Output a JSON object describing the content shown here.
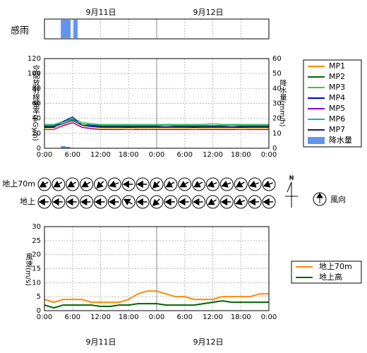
{
  "dates": [
    "9月11日",
    "9月12日"
  ],
  "chart_data": [
    {
      "type": "timeline",
      "label": "感雨",
      "color": "#6495ed",
      "xlim": [
        0,
        48
      ],
      "xticks": [
        0,
        6,
        12,
        18,
        24,
        30,
        36,
        42,
        48
      ],
      "intervals": [
        [
          3.5,
          5.6
        ],
        [
          6.2,
          7.1
        ]
      ]
    },
    {
      "type": "line",
      "ylabel": "空間放射線量率(nGy/h)",
      "y2label": "降水量(mm/h)",
      "xlim": [
        0,
        48
      ],
      "ylim": [
        0,
        120
      ],
      "yticks": [
        0,
        20,
        40,
        60,
        80,
        100,
        120
      ],
      "y2lim": [
        0,
        60
      ],
      "y2ticks": [
        0,
        10,
        20,
        30,
        40,
        50,
        60
      ],
      "xticks": [
        {
          "value": 0,
          "label": "0:00"
        },
        {
          "value": 6,
          "label": "6:00"
        },
        {
          "value": 12,
          "label": "12:00"
        },
        {
          "value": 18,
          "label": "18:00"
        },
        {
          "value": 24,
          "label": "0:00"
        },
        {
          "value": 30,
          "label": "6:00"
        },
        {
          "value": 36,
          "label": "12:00"
        },
        {
          "value": 42,
          "label": "18:00"
        },
        {
          "value": 48,
          "label": "0:00"
        }
      ],
      "x": [
        0,
        2,
        4,
        6,
        8,
        10,
        12,
        14,
        16,
        18,
        20,
        22,
        24,
        26,
        28,
        30,
        32,
        34,
        36,
        38,
        40,
        42,
        44,
        46,
        48
      ],
      "series": [
        {
          "name": "MP1",
          "color": "#ff8c00",
          "values": [
            27,
            27,
            31,
            35,
            29,
            27,
            26,
            26,
            26,
            27,
            26,
            26,
            26,
            26,
            26,
            26,
            27,
            26,
            26,
            26,
            26,
            27,
            26,
            26,
            26
          ]
        },
        {
          "name": "MP2",
          "color": "#006400",
          "values": [
            30,
            30,
            35,
            39,
            33,
            31,
            30,
            30,
            30,
            30,
            30,
            30,
            30,
            31,
            30,
            30,
            30,
            30,
            30,
            30,
            31,
            30,
            30,
            30,
            30
          ]
        },
        {
          "name": "MP3",
          "color": "#32cd32",
          "values": [
            32,
            32,
            36,
            40,
            35,
            33,
            32,
            32,
            32,
            32,
            32,
            32,
            32,
            32,
            32,
            32,
            32,
            32,
            33,
            32,
            32,
            32,
            32,
            32,
            32
          ]
        },
        {
          "name": "MP4",
          "color": "#0000cd",
          "values": [
            28,
            28,
            36,
            42,
            31,
            29,
            28,
            28,
            28,
            28,
            28,
            28,
            28,
            28,
            28,
            28,
            28,
            28,
            28,
            28,
            28,
            28,
            28,
            28,
            28
          ]
        },
        {
          "name": "MP5",
          "color": "#9400d3",
          "values": [
            25,
            25,
            30,
            34,
            28,
            26,
            25,
            25,
            25,
            25,
            25,
            25,
            25,
            25,
            25,
            25,
            25,
            25,
            25,
            25,
            25,
            25,
            25,
            25,
            25
          ]
        },
        {
          "name": "MP6",
          "color": "#20b2aa",
          "values": [
            31,
            31,
            35,
            38,
            33,
            32,
            31,
            31,
            31,
            31,
            31,
            31,
            31,
            31,
            31,
            31,
            31,
            31,
            31,
            31,
            31,
            31,
            31,
            31,
            31
          ]
        },
        {
          "name": "MP7",
          "color": "#191970",
          "values": [
            29,
            29,
            33,
            37,
            31,
            30,
            29,
            29,
            29,
            29,
            29,
            29,
            29,
            29,
            29,
            29,
            29,
            29,
            29,
            29,
            29,
            29,
            29,
            29,
            29
          ]
        },
        {
          "name": "降水量",
          "type": "bar",
          "axis": "y2",
          "color": "#6495ed",
          "x": [
            4,
            5
          ],
          "values": [
            1.5,
            1
          ]
        }
      ]
    },
    {
      "type": "arrows",
      "xlim": [
        0,
        48
      ],
      "x": [
        0,
        3,
        6,
        9,
        12,
        15,
        18,
        21,
        24,
        27,
        30,
        33,
        36,
        39,
        42,
        45,
        48
      ],
      "north_label": "N",
      "legend_label": "風向",
      "rows": [
        {
          "name": "地上70m",
          "values": [
            240,
            240,
            240,
            240,
            225,
            250,
            270,
            270,
            225,
            240,
            240,
            240,
            250,
            250,
            240,
            250,
            250
          ]
        },
        {
          "name": "地上",
          "values": [
            270,
            270,
            270,
            270,
            270,
            270,
            300,
            270,
            225,
            270,
            270,
            270,
            240,
            270,
            250,
            270,
            270
          ]
        }
      ]
    },
    {
      "type": "line",
      "ylabel": "風速(m/s)",
      "xlim": [
        0,
        48
      ],
      "ylim": [
        0,
        30
      ],
      "yticks": [
        0,
        5,
        10,
        15,
        20,
        25,
        30
      ],
      "xticks": [
        {
          "value": 0,
          "label": "0:00"
        },
        {
          "value": 6,
          "label": "6:00"
        },
        {
          "value": 12,
          "label": "12:00"
        },
        {
          "value": 18,
          "label": "18:00"
        },
        {
          "value": 24,
          "label": "0:00"
        },
        {
          "value": 30,
          "label": "6:00"
        },
        {
          "value": 36,
          "label": "12:00"
        },
        {
          "value": 42,
          "label": "18:00"
        },
        {
          "value": 48,
          "label": "0:00"
        }
      ],
      "x": [
        0,
        2,
        4,
        6,
        8,
        10,
        12,
        14,
        16,
        18,
        20,
        22,
        24,
        26,
        28,
        30,
        32,
        34,
        36,
        38,
        40,
        42,
        44,
        46,
        48
      ],
      "series": [
        {
          "name": "地上70m",
          "color": "#ff8c00",
          "values": [
            4,
            3,
            4,
            4,
            4,
            3,
            3,
            3,
            3,
            4,
            6,
            7,
            7,
            6,
            5,
            5,
            4,
            4,
            4,
            5,
            5,
            5,
            5,
            6,
            6
          ]
        },
        {
          "name": "地上高",
          "color": "#006400",
          "values": [
            2,
            1,
            2,
            2,
            2,
            2,
            1.5,
            1.5,
            2,
            2,
            2.5,
            2.5,
            2.5,
            2,
            2,
            2,
            2,
            2.5,
            3,
            3.5,
            3,
            3,
            3,
            3,
            3
          ]
        }
      ]
    }
  ]
}
